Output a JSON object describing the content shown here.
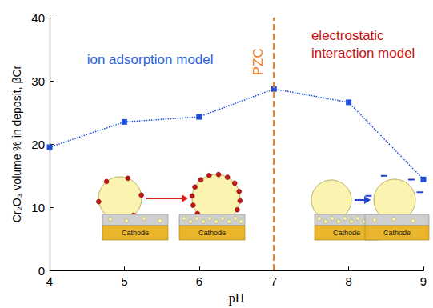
{
  "chart_data": {
    "type": "line",
    "x_label": "pH",
    "y_label": "Cr₂O₃ volume % in deposit, βCr",
    "x": [
      4,
      5,
      6,
      7,
      8,
      9
    ],
    "values": [
      19.5,
      23.5,
      24.3,
      28.7,
      26.6,
      14.4
    ],
    "color": "#1f4fd8",
    "marker": "square",
    "line_style": "dotted",
    "xlim": [
      4,
      9
    ],
    "xticks": [
      4,
      5,
      6,
      7,
      8,
      9
    ],
    "ylim": [
      0,
      40
    ],
    "yticks": [
      0,
      10,
      20,
      30,
      40
    ],
    "grid": false,
    "vline": {
      "x": 7,
      "label": "PZC",
      "color": "#f08020",
      "line_style": "dashed"
    },
    "annotations": [
      {
        "text": "ion adsorption model",
        "color": "#2a62d8"
      },
      {
        "text": "electrostatic\ninteraction model",
        "color": "#c81010"
      }
    ],
    "diagram_labels": [
      "Cathode",
      "Cathode",
      "Cathode",
      "Cathode"
    ]
  }
}
